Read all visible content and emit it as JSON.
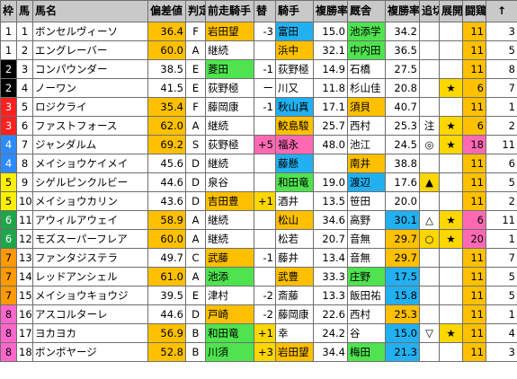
{
  "headers": [
    "枠",
    "馬",
    "馬名",
    "偏差値",
    "判定",
    "前走騎手",
    "替",
    "騎手",
    "複勝率",
    "厩舎",
    "複勝率",
    "追切",
    "展開",
    "闘鶏",
    "↑"
  ],
  "colors": {
    "header": "#c9c9c9",
    "waku": {
      "1": "#ffffff",
      "2": "#000000",
      "3": "#ff2020",
      "4": "#2e8bff",
      "5": "#fff000",
      "6": "#1fa64a",
      "7": "#ff9a00",
      "8": "#ff66cc"
    },
    "orange": "#ffc000",
    "green": "#4fe34f",
    "blue": "#22b0f0",
    "pink": "#ff69b4",
    "yellow": "#ffd700"
  },
  "rows": [
    {
      "waku": "1",
      "num": "1",
      "name": "ボンセルヴィーソ",
      "score": "36.4",
      "grade": "F",
      "prev": "岩田望",
      "chg": "-3",
      "jockey": "富田",
      "jrate": "15.0",
      "trainer": "池添学",
      "trate": "34.2",
      "oikiri": "",
      "tenkai": "",
      "val": "11",
      "arrow": "3",
      "hl": {
        "score": "orange",
        "prev": "orange",
        "jockey": "blue",
        "trainer": "green",
        "val": "orange"
      }
    },
    {
      "waku": "1",
      "num": "2",
      "name": "エングレーバー",
      "score": "60.0",
      "grade": "A",
      "prev": "継続",
      "chg": "",
      "jockey": "浜中",
      "jrate": "32.1",
      "trainer": "中内田",
      "trate": "36.5",
      "oikiri": "",
      "tenkai": "",
      "val": "11",
      "arrow": "5",
      "hl": {
        "score": "orange",
        "jockey": "orange",
        "trainer": "green",
        "val": "orange"
      }
    },
    {
      "waku": "2",
      "num": "3",
      "name": "コンパウンダー",
      "score": "38.5",
      "grade": "E",
      "prev": "菱田",
      "chg": "-1",
      "jockey": "荻野極",
      "jrate": "14.9",
      "trainer": "石橋",
      "trate": "27.5",
      "oikiri": "",
      "tenkai": "",
      "val": "11",
      "arrow": "8",
      "hl": {
        "prev": "green",
        "jockey": "",
        "val": "orange"
      }
    },
    {
      "waku": "2",
      "num": "4",
      "name": "ノーワン",
      "score": "41.5",
      "grade": "E",
      "prev": "荻野極",
      "chg": "ー",
      "jockey": "川又",
      "jrate": "11.8",
      "trainer": "杉山佳",
      "trate": "20.8",
      "oikiri": "",
      "tenkai": "★",
      "val": "6",
      "arrow": "7",
      "hl": {
        "tenkai": "yellow",
        "val": "orange"
      }
    },
    {
      "waku": "3",
      "num": "5",
      "name": "ロジクライ",
      "score": "35.4",
      "grade": "F",
      "prev": "藤岡康",
      "chg": "-1",
      "jockey": "秋山真",
      "jrate": "17.1",
      "trainer": "須貝",
      "trate": "40.7",
      "oikiri": "",
      "tenkai": "",
      "val": "11",
      "arrow": "1",
      "hl": {
        "score": "orange",
        "jockey": "blue",
        "trainer": "orange",
        "val": "orange"
      }
    },
    {
      "waku": "3",
      "num": "6",
      "name": "ファストフォース",
      "score": "62.0",
      "grade": "A",
      "prev": "継続",
      "chg": "",
      "jockey": "鮫島駿",
      "jrate": "25.7",
      "trainer": "西村",
      "trate": "25.3",
      "oikiri": "注",
      "tenkai": "★",
      "val": "6",
      "arrow": "2",
      "hl": {
        "score": "orange",
        "jockey": "orange",
        "tenkai": "yellow",
        "val": "orange"
      }
    },
    {
      "waku": "4",
      "num": "7",
      "name": "ジャンダルム",
      "score": "69.2",
      "grade": "S",
      "prev": "荻野極",
      "chg": "+5",
      "jockey": "福永",
      "jrate": "48.0",
      "trainer": "池江",
      "trate": "24.5",
      "oikiri": "◎",
      "tenkai": "★",
      "val": "18",
      "arrow": "11",
      "hl": {
        "score": "orange",
        "chg": "pink",
        "jockey": "pink",
        "tenkai": "yellow",
        "val": "pink"
      }
    },
    {
      "waku": "4",
      "num": "8",
      "name": "メイショウケイメイ",
      "score": "45.6",
      "grade": "D",
      "prev": "継続",
      "chg": "",
      "jockey": "藤懸",
      "jrate": "",
      "trainer": "南井",
      "trate": "38.8",
      "oikiri": "",
      "tenkai": "",
      "val": "11",
      "arrow": "6",
      "hl": {
        "jockey": "blue",
        "trainer": "orange",
        "val": "orange"
      }
    },
    {
      "waku": "5",
      "num": "9",
      "name": "シゲルピンクルビー",
      "score": "44.6",
      "grade": "D",
      "prev": "泉谷",
      "chg": "",
      "jockey": "和田竜",
      "jrate": "19.0",
      "trainer": "渡辺",
      "trate": "17.6",
      "oikiri": "▲",
      "tenkai": "",
      "val": "11",
      "arrow": "5",
      "hl": {
        "jockey": "green",
        "trainer": "blue",
        "oikiri": "yellow",
        "val": "orange"
      }
    },
    {
      "waku": "5",
      "num": "10",
      "name": "メイショウカリン",
      "score": "43.6",
      "grade": "D",
      "prev": "吉田豊",
      "chg": "+1",
      "jockey": "酒井",
      "jrate": "13.5",
      "trainer": "笹田",
      "trate": "20.0",
      "oikiri": "",
      "tenkai": "",
      "val": "11",
      "arrow": "2",
      "hl": {
        "prev": "orange",
        "chg": "yellow",
        "val": "orange"
      }
    },
    {
      "waku": "6",
      "num": "11",
      "name": "アウィルアウェイ",
      "score": "58.9",
      "grade": "A",
      "prev": "継続",
      "chg": "",
      "jockey": "松山",
      "jrate": "34.6",
      "trainer": "高野",
      "trate": "30.1",
      "oikiri": "△",
      "tenkai": "★",
      "val": "6",
      "arrow": "11",
      "hl": {
        "score": "orange",
        "jockey": "orange",
        "trate": "blue",
        "tenkai": "yellow",
        "val": "pink"
      }
    },
    {
      "waku": "6",
      "num": "12",
      "name": "モズスーパーフレア",
      "score": "60.0",
      "grade": "A",
      "prev": "継続",
      "chg": "",
      "jockey": "松若",
      "jrate": "20.7",
      "trainer": "音無",
      "trate": "29.7",
      "oikiri": "○",
      "tenkai": "★",
      "val": "20",
      "arrow": "1",
      "hl": {
        "score": "orange",
        "trate": "orange",
        "oikiri": "yellow",
        "tenkai": "yellow",
        "val": "pink"
      }
    },
    {
      "waku": "7",
      "num": "13",
      "name": "ファンタジステラ",
      "score": "49.7",
      "grade": "C",
      "prev": "武藤",
      "chg": "-1",
      "jockey": "藤井",
      "jrate": "13.4",
      "trainer": "音無",
      "trate": "29.7",
      "oikiri": "",
      "tenkai": "",
      "val": "11",
      "arrow": "7",
      "hl": {
        "prev": "orange",
        "trate": "orange",
        "val": "orange"
      }
    },
    {
      "waku": "7",
      "num": "14",
      "name": "レッドアンシェル",
      "score": "61.0",
      "grade": "A",
      "prev": "池添",
      "chg": "",
      "jockey": "武豊",
      "jrate": "33.3",
      "trainer": "庄野",
      "trate": "17.5",
      "oikiri": "",
      "tenkai": "",
      "val": "11",
      "arrow": "5",
      "hl": {
        "score": "orange",
        "prev": "green",
        "jockey": "orange",
        "trainer": "green",
        "trate": "blue",
        "val": "orange"
      }
    },
    {
      "waku": "7",
      "num": "15",
      "name": "メイショウキョウジ",
      "score": "39.5",
      "grade": "E",
      "prev": "津村",
      "chg": "-2",
      "jockey": "斎藤",
      "jrate": "13.3",
      "trainer": "飯田祐",
      "trate": "15.8",
      "oikiri": "",
      "tenkai": "",
      "val": "11",
      "arrow": "5",
      "hl": {
        "trate": "blue",
        "val": "orange"
      }
    },
    {
      "waku": "8",
      "num": "16",
      "name": "アスコルターレ",
      "score": "44.6",
      "grade": "D",
      "prev": "戸崎",
      "chg": "-2",
      "jockey": "藤岡康",
      "jrate": "22.6",
      "trainer": "西村",
      "trate": "25.3",
      "oikiri": "",
      "tenkai": "",
      "val": "11",
      "arrow": "1",
      "hl": {
        "prev": "orange",
        "trate": "orange",
        "val": "orange"
      }
    },
    {
      "waku": "8",
      "num": "17",
      "name": "ヨカヨカ",
      "score": "56.9",
      "grade": "B",
      "prev": "和田竜",
      "chg": "+1",
      "jockey": "幸",
      "jrate": "24.2",
      "trainer": "谷",
      "trate": "15.0",
      "oikiri": "▽",
      "tenkai": "★",
      "val": "11",
      "arrow": "4",
      "hl": {
        "score": "orange",
        "prev": "green",
        "chg": "yellow",
        "trate": "blue",
        "tenkai": "yellow",
        "val": "orange"
      }
    },
    {
      "waku": "8",
      "num": "18",
      "name": "ボンボヤージ",
      "score": "52.8",
      "grade": "B",
      "prev": "川須",
      "chg": "+3",
      "jockey": "岩田望",
      "jrate": "34.4",
      "trainer": "梅田",
      "trate": "21.3",
      "oikiri": "",
      "tenkai": "",
      "val": "11",
      "arrow": "3",
      "hl": {
        "score": "orange",
        "prev": "green",
        "chg": "yellow",
        "jockey": "orange",
        "trainer": "green",
        "trate": "blue",
        "val": "orange"
      }
    }
  ]
}
